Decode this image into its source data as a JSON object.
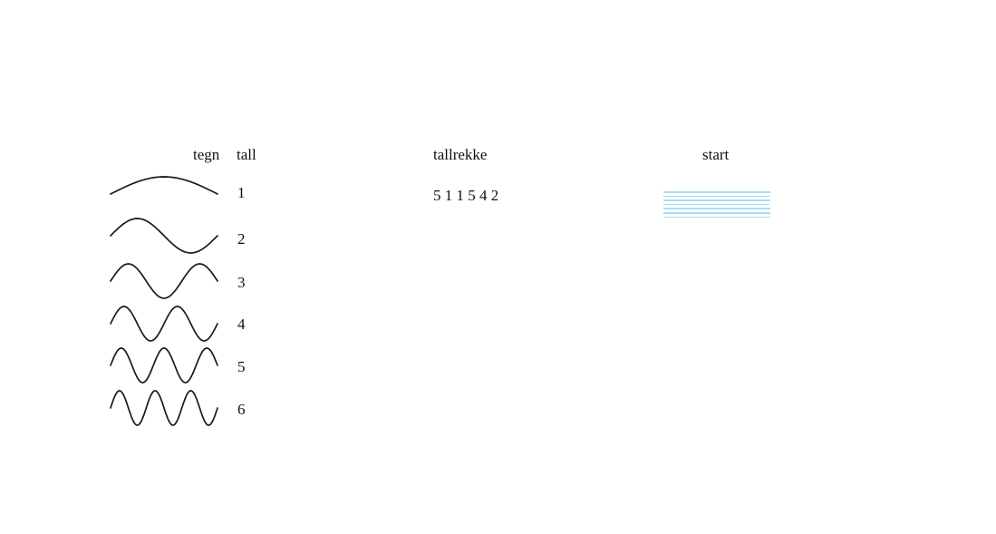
{
  "colors": {
    "background": "#ffffff",
    "ink": "#111111",
    "wave_stroke": "#1a1a1a",
    "guide_line": "#a9dcf2"
  },
  "legend": {
    "tegn_header": "tegn",
    "tall_header": "tall",
    "rows": [
      {
        "halfwaves": 1,
        "tall": "1"
      },
      {
        "halfwaves": 2,
        "tall": "2"
      },
      {
        "halfwaves": 3,
        "tall": "3"
      },
      {
        "halfwaves": 4,
        "tall": "4"
      },
      {
        "halfwaves": 5,
        "tall": "5"
      },
      {
        "halfwaves": 6,
        "tall": "6"
      }
    ]
  },
  "sequence": {
    "header": "tallrekke",
    "value": "5 1 1 5 4 2"
  },
  "start": {
    "header": "start",
    "guide_line_count": 7
  }
}
